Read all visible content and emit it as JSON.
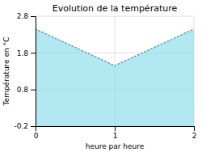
{
  "chart_data": {
    "type": "area",
    "title": "Evolution de la température",
    "xlabel": "heure par heure",
    "ylabel": "Température en °C",
    "x": [
      0,
      1,
      2
    ],
    "values": [
      2.45,
      1.45,
      2.45
    ],
    "color": "#7dd8e8",
    "line_style": "dotted",
    "xlim": [
      0,
      2
    ],
    "ylim": [
      -0.2,
      2.8
    ],
    "xticks": [
      0,
      1,
      2
    ],
    "yticks": [
      -0.2,
      0.8,
      1.8,
      2.8
    ],
    "grid": true
  }
}
